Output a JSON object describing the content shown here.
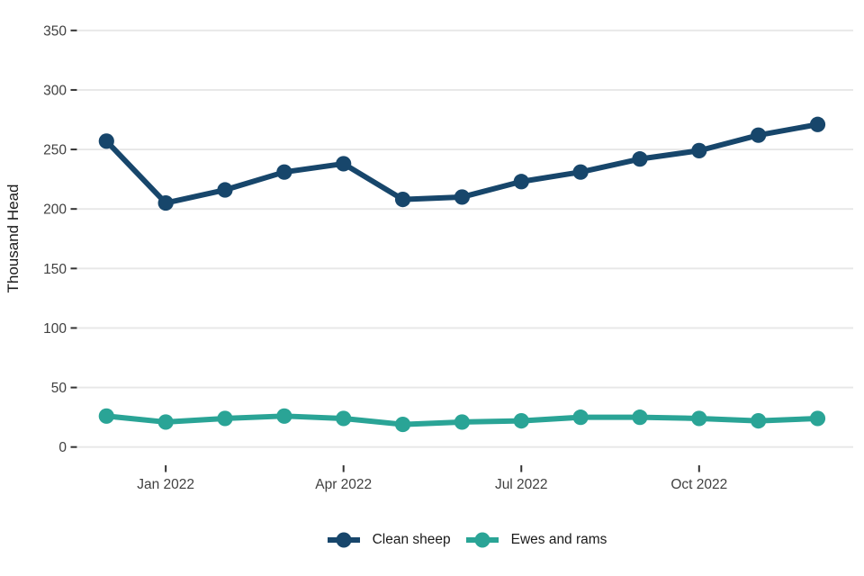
{
  "chart_data": {
    "type": "line",
    "title": "",
    "xlabel": "",
    "ylabel": "Thousand Head",
    "ylim": [
      0,
      350
    ],
    "yticks": [
      0,
      50,
      100,
      150,
      200,
      250,
      300,
      350
    ],
    "grid": "horizontal-only",
    "legend_position": "bottom-center",
    "categories": [
      "Dec 2021",
      "Jan 2022",
      "Feb 2022",
      "Mar 2022",
      "Apr 2022",
      "May 2022",
      "Jun 2022",
      "Jul 2022",
      "Aug 2022",
      "Sep 2022",
      "Oct 2022",
      "Nov 2022",
      "Dec 2022"
    ],
    "xticks": [
      {
        "index": 1,
        "label": "Jan 2022"
      },
      {
        "index": 4,
        "label": "Apr 2022"
      },
      {
        "index": 7,
        "label": "Jul 2022"
      },
      {
        "index": 10,
        "label": "Oct 2022"
      }
    ],
    "series": [
      {
        "name": "Clean sheep",
        "color": "#17466b",
        "values": [
          257,
          205,
          216,
          231,
          238,
          208,
          210,
          223,
          231,
          242,
          249,
          262,
          271
        ]
      },
      {
        "name": "Ewes and rams",
        "color": "#2aa496",
        "values": [
          26,
          21,
          24,
          26,
          24,
          19,
          21,
          22,
          25,
          25,
          24,
          22,
          24
        ]
      }
    ]
  },
  "style_colors": {
    "gridline": "#e7e7e7",
    "tick_mark": "#333333",
    "tick_label": "#404040",
    "axis_title": "#1a1a1a"
  }
}
